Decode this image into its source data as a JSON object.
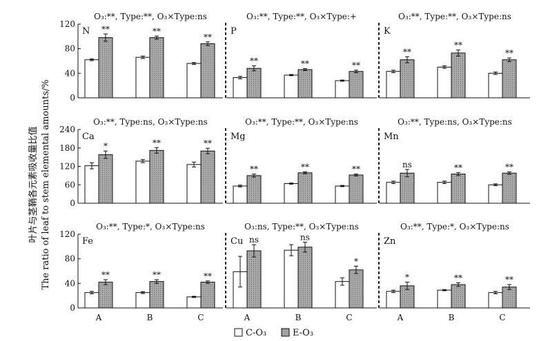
{
  "figure": {
    "ylabel_cn": "叶片与茎鞘各元素吸收量比值",
    "ylabel_en": "The ratio of leaf to stem elemental amounts/%",
    "categories": [
      "A",
      "B",
      "C"
    ],
    "legend": [
      {
        "label": "C-O₃",
        "color": "#ffffff"
      },
      {
        "label": "E-O₃",
        "color": "#a6a6a6"
      }
    ]
  },
  "chart_data": [
    {
      "type": "bar",
      "label": "N",
      "stats": "O₃:**, Type:**, O₃×Type:ns",
      "ylim": [
        0,
        120
      ],
      "yticks": [
        "0",
        "40",
        "80",
        "120"
      ],
      "categories": [
        "A",
        "B",
        "C"
      ],
      "series": [
        {
          "values": [
            62,
            66,
            56
          ],
          "err": [
            1.5,
            2,
            1.5
          ]
        },
        {
          "values": [
            98,
            98,
            88
          ],
          "err": [
            6,
            2.5,
            3
          ]
        }
      ],
      "annotations": [
        "**",
        "**",
        "**"
      ]
    },
    {
      "type": "bar",
      "label": "P",
      "stats": "O₃:**, Type:**, O₃×Type:+",
      "ylim": [
        0,
        120
      ],
      "yticks": [],
      "categories": [
        "A",
        "B",
        "C"
      ],
      "series": [
        {
          "values": [
            33,
            37,
            28
          ],
          "err": [
            2,
            1,
            1
          ]
        },
        {
          "values": [
            48,
            46,
            43
          ],
          "err": [
            4,
            1.5,
            2
          ]
        }
      ],
      "annotations": [
        "**",
        "**",
        "**"
      ]
    },
    {
      "type": "bar",
      "label": "K",
      "stats": "O₃:**, Type:**, O₃×Type:ns",
      "ylim": [
        0,
        120
      ],
      "yticks": [],
      "categories": [
        "A",
        "B",
        "C"
      ],
      "series": [
        {
          "values": [
            43,
            50,
            40
          ],
          "err": [
            2,
            2,
            2
          ]
        },
        {
          "values": [
            62,
            73,
            62
          ],
          "err": [
            5,
            5,
            3
          ]
        }
      ],
      "annotations": [
        "**",
        "**",
        "**"
      ]
    },
    {
      "type": "bar",
      "label": "Ca",
      "stats": "O₃:**, Type:ns, O₃×Type:ns",
      "ylim": [
        0,
        240
      ],
      "yticks": [
        "0",
        "60",
        "120",
        "180",
        "240"
      ],
      "categories": [
        "A",
        "B",
        "C"
      ],
      "series": [
        {
          "values": [
            122,
            137,
            126
          ],
          "err": [
            10,
            5,
            8
          ]
        },
        {
          "values": [
            158,
            172,
            170
          ],
          "err": [
            12,
            9,
            9
          ]
        }
      ],
      "annotations": [
        "*",
        "**",
        "**"
      ]
    },
    {
      "type": "bar",
      "label": "Mg",
      "stats": "O₃:**, Type:**, O₃×Type:ns",
      "ylim": [
        0,
        240
      ],
      "yticks": [],
      "categories": [
        "A",
        "B",
        "C"
      ],
      "series": [
        {
          "values": [
            56,
            64,
            56
          ],
          "err": [
            3,
            2,
            2
          ]
        },
        {
          "values": [
            90,
            99,
            92
          ],
          "err": [
            5,
            3,
            3
          ]
        }
      ],
      "annotations": [
        "**",
        "**",
        "**"
      ]
    },
    {
      "type": "bar",
      "label": "Mn",
      "stats": "O₃:**, Type:ns, O₃×Type:ns",
      "ylim": [
        0,
        240
      ],
      "yticks": [],
      "categories": [
        "A",
        "B",
        "C"
      ],
      "series": [
        {
          "values": [
            68,
            68,
            60
          ],
          "err": [
            4,
            4,
            3
          ]
        },
        {
          "values": [
            98,
            95,
            98
          ],
          "err": [
            12,
            5,
            4
          ]
        }
      ],
      "annotations": [
        "ns",
        "**",
        "**"
      ]
    },
    {
      "type": "bar",
      "label": "Fe",
      "stats": "O₃:**, Type:*, O₃×Type:ns",
      "ylim": [
        0,
        120
      ],
      "yticks": [
        "0",
        "40",
        "80",
        "120"
      ],
      "categories": [
        "A",
        "B",
        "C"
      ],
      "series": [
        {
          "values": [
            25,
            25,
            18
          ],
          "err": [
            2,
            1.5,
            1
          ]
        },
        {
          "values": [
            42,
            43,
            42
          ],
          "err": [
            4,
            3,
            2
          ]
        }
      ],
      "annotations": [
        "**",
        "**",
        "**"
      ]
    },
    {
      "type": "bar",
      "label": "Cu",
      "stats": "O₃:ns, Type:**, O₃×Type:ns",
      "ylim": [
        0,
        120
      ],
      "yticks": [],
      "categories": [
        "A",
        "B",
        "C"
      ],
      "series": [
        {
          "values": [
            59,
            94,
            43
          ],
          "err": [
            25,
            9,
            6
          ]
        },
        {
          "values": [
            93,
            99,
            62
          ],
          "err": [
            10,
            8,
            6
          ]
        }
      ],
      "annotations": [
        "ns",
        "ns",
        "*"
      ]
    },
    {
      "type": "bar",
      "label": "Zn",
      "stats": "O₃:**, Type:*, O₃×Type:ns",
      "ylim": [
        0,
        120
      ],
      "yticks": [],
      "categories": [
        "A",
        "B",
        "C"
      ],
      "series": [
        {
          "values": [
            27,
            29,
            25
          ],
          "err": [
            2,
            1,
            2
          ]
        },
        {
          "values": [
            36,
            38,
            34
          ],
          "err": [
            6,
            3,
            4
          ]
        }
      ],
      "annotations": [
        "*",
        "**",
        "**"
      ]
    }
  ]
}
